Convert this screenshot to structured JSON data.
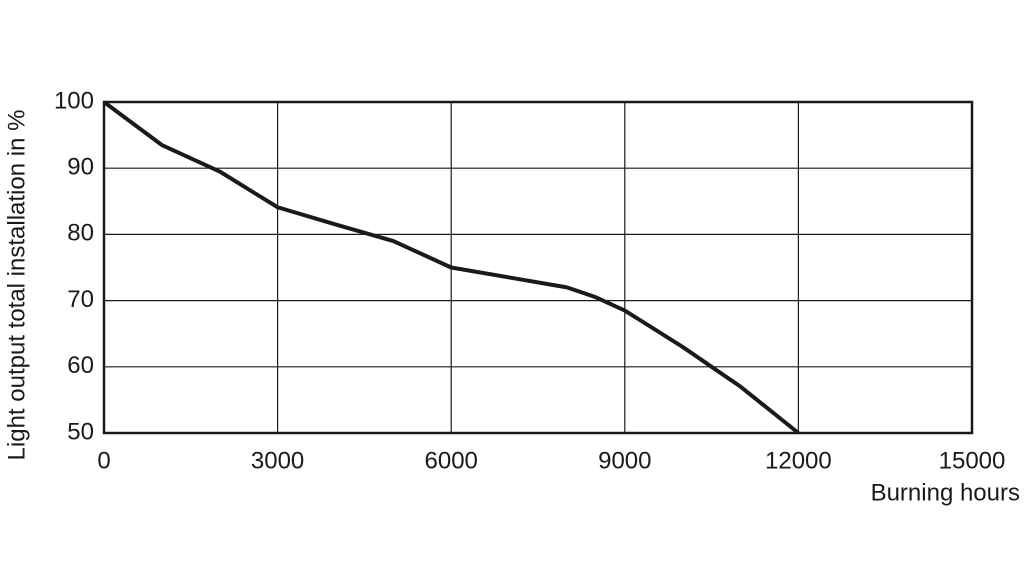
{
  "chart_data": {
    "type": "line",
    "x_label": "Burning hours",
    "y_label": "Light output total installation in %",
    "x": [
      0,
      1000,
      2000,
      3000,
      4000,
      5000,
      6000,
      7000,
      8000,
      8500,
      9000,
      10000,
      10500,
      11000,
      12000
    ],
    "values": [
      100,
      93.5,
      89.5,
      84.1,
      81.5,
      79,
      75,
      73.5,
      72,
      70.5,
      68.5,
      63,
      60,
      57,
      50
    ],
    "color": "#1a1a1a",
    "xlim": [
      0,
      15000
    ],
    "xticks": [
      0,
      3000,
      6000,
      9000,
      12000,
      15000
    ],
    "ylim": [
      50,
      100
    ],
    "yticks": [
      50,
      60,
      70,
      80,
      90,
      100
    ],
    "grid": true
  }
}
